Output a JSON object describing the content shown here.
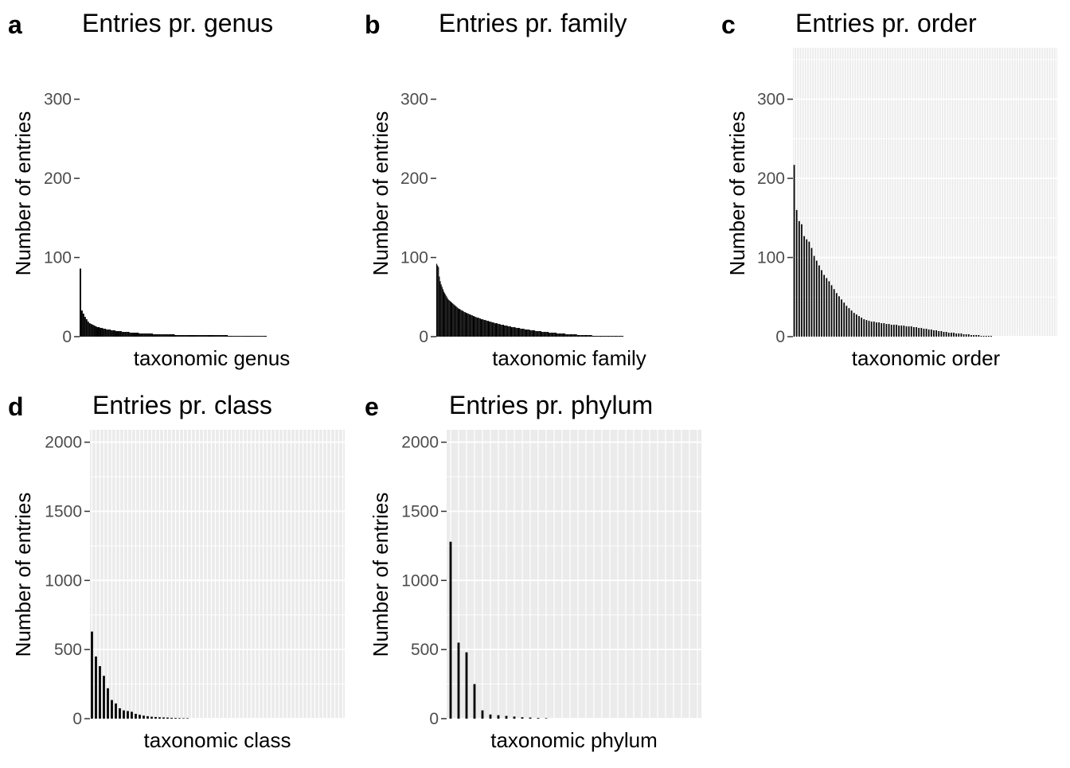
{
  "chart_data": [
    {
      "panel": "a",
      "type": "bar",
      "title": "Entries pr. genus",
      "xlabel": "taxonomic genus",
      "ylabel": "Number of entries",
      "ylim": [
        0,
        365
      ],
      "yticks": [
        0,
        100,
        200,
        300
      ],
      "grid": false,
      "n_categories": 120,
      "values": [
        86,
        33,
        29,
        25,
        22,
        19,
        17,
        16,
        15,
        14,
        13,
        12,
        12,
        11,
        11,
        10,
        10,
        9,
        9,
        9,
        8,
        8,
        8,
        7,
        7,
        7,
        7,
        6,
        6,
        6,
        6,
        6,
        5,
        5,
        5,
        5,
        5,
        5,
        4,
        4,
        4,
        4,
        4,
        4,
        4,
        4,
        4,
        3,
        3,
        3,
        3,
        3,
        3,
        3,
        3,
        3,
        3,
        3,
        3,
        3,
        3,
        2,
        2,
        2,
        2,
        2,
        2,
        2,
        2,
        2,
        2,
        2,
        2,
        2,
        2,
        2,
        2,
        2,
        2,
        2,
        2,
        2,
        2,
        2,
        2,
        2,
        2,
        2,
        2,
        2,
        2,
        2,
        2,
        2,
        2,
        1,
        1,
        1,
        1,
        1,
        1,
        1,
        1,
        1,
        1,
        1,
        1,
        1,
        1,
        1,
        1,
        1,
        1,
        1,
        1,
        1,
        1,
        1,
        1,
        1
      ]
    },
    {
      "panel": "b",
      "type": "bar",
      "title": "Entries pr. family",
      "xlabel": "taxonomic family",
      "ylabel": "Number of entries",
      "ylim": [
        0,
        365
      ],
      "yticks": [
        0,
        100,
        200,
        300
      ],
      "grid": false,
      "n_categories": 210,
      "values": [
        92,
        90,
        88,
        76,
        70,
        66,
        63,
        60,
        57,
        55,
        53,
        51,
        49,
        47,
        46,
        45,
        44,
        43,
        42,
        41,
        40,
        39,
        38,
        37,
        36,
        35,
        35,
        34,
        33,
        33,
        32,
        31,
        31,
        30,
        30,
        29,
        29,
        28,
        28,
        27,
        27,
        26,
        26,
        25,
        25,
        24,
        24,
        24,
        23,
        23,
        22,
        22,
        22,
        21,
        21,
        21,
        20,
        20,
        20,
        19,
        19,
        19,
        18,
        18,
        18,
        17,
        17,
        17,
        17,
        16,
        16,
        16,
        15,
        15,
        15,
        15,
        14,
        14,
        14,
        14,
        13,
        13,
        13,
        13,
        12,
        12,
        12,
        12,
        12,
        11,
        11,
        11,
        11,
        11,
        10,
        10,
        10,
        10,
        10,
        9,
        9,
        9,
        9,
        9,
        9,
        8,
        8,
        8,
        8,
        8,
        8,
        7,
        7,
        7,
        7,
        7,
        7,
        7,
        6,
        6,
        6,
        6,
        6,
        6,
        6,
        6,
        5,
        5,
        5,
        5,
        5,
        5,
        5,
        5,
        5,
        4,
        4,
        4,
        4,
        4,
        4,
        4,
        4,
        4,
        4,
        3,
        3,
        3,
        3,
        3,
        3,
        3,
        3,
        3,
        3,
        3,
        3,
        3,
        2,
        2,
        2,
        2,
        2,
        2,
        2,
        2,
        2,
        2,
        2,
        2,
        2,
        2,
        2,
        2,
        2,
        1,
        1,
        1,
        1,
        1,
        1,
        1,
        1,
        1,
        1,
        1,
        1,
        1,
        1,
        1,
        1,
        1,
        1,
        1,
        1,
        1,
        1,
        1,
        1,
        1,
        1,
        1,
        1,
        1,
        1,
        1,
        1,
        1,
        1,
        1
      ]
    },
    {
      "panel": "c",
      "type": "bar",
      "title": "Entries pr. order",
      "xlabel": "taxonomic order",
      "ylabel": "Number of entries",
      "ylim": [
        0,
        365
      ],
      "yticks": [
        0,
        100,
        200,
        300
      ],
      "grid": true,
      "n_categories": 106,
      "values": [
        217,
        160,
        146,
        142,
        127,
        123,
        120,
        112,
        102,
        96,
        90,
        84,
        78,
        74,
        70,
        65,
        60,
        55,
        51,
        47,
        43,
        39,
        36,
        33,
        30,
        28,
        26,
        24,
        22,
        21,
        20,
        19,
        19,
        18,
        18,
        17,
        17,
        16,
        16,
        15,
        15,
        15,
        14,
        14,
        14,
        13,
        13,
        13,
        12,
        12,
        11,
        11,
        10,
        10,
        9,
        9,
        8,
        8,
        7,
        7,
        6,
        6,
        5,
        5,
        5,
        4,
        4,
        4,
        3,
        3,
        3,
        2,
        2,
        2,
        2,
        1,
        1,
        1,
        1,
        1
      ]
    },
    {
      "panel": "d",
      "type": "bar",
      "title": "Entries pr. class",
      "xlabel": "taxonomic class",
      "ylabel": "Number of entries",
      "ylim": [
        0,
        2090
      ],
      "yticks": [
        0,
        500,
        1000,
        1500,
        2000
      ],
      "grid": true,
      "n_categories": 64,
      "values": [
        630,
        450,
        380,
        310,
        220,
        135,
        110,
        75,
        60,
        55,
        50,
        35,
        28,
        22,
        18,
        14,
        12,
        10,
        9,
        8,
        6,
        5,
        4,
        3,
        2
      ]
    },
    {
      "panel": "e",
      "type": "bar",
      "title": "Entries pr. phylum",
      "xlabel": "taxonomic phylum",
      "ylabel": "Number of entries",
      "ylim": [
        0,
        2090
      ],
      "yticks": [
        0,
        500,
        1000,
        1500,
        2000
      ],
      "grid": true,
      "n_categories": 32,
      "values": [
        1280,
        550,
        480,
        250,
        60,
        30,
        25,
        20,
        15,
        10,
        8,
        5,
        3
      ]
    }
  ]
}
